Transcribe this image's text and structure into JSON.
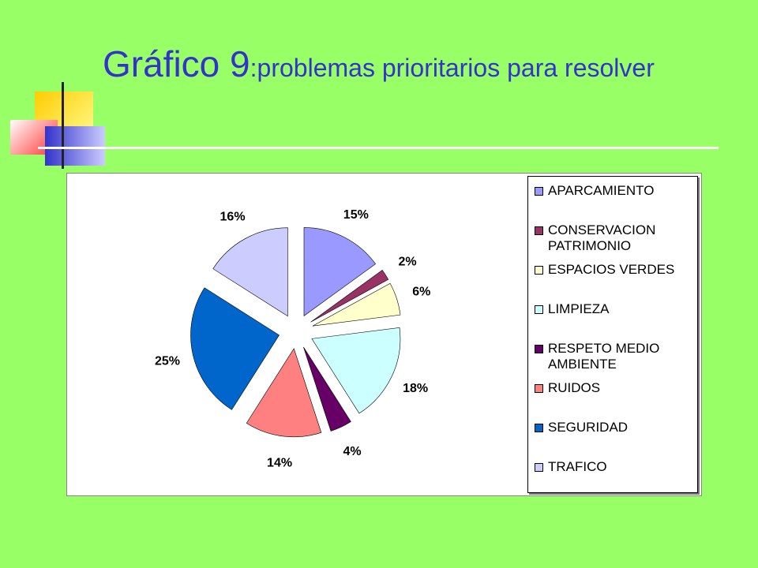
{
  "title": {
    "main": "Gráfico 9",
    "rest": ":problemas prioritarios para resolver"
  },
  "chart_data": {
    "type": "pie",
    "categories": [
      "APARCAMIENTO",
      "CONSERVACION PATRIMONIO",
      "ESPACIOS VERDES",
      "LIMPIEZA",
      "RESPETO MEDIO AMBIENTE",
      "RUIDOS",
      "SEGURIDAD",
      "TRAFICO"
    ],
    "values": [
      15,
      2,
      6,
      18,
      4,
      14,
      25,
      16
    ],
    "labels": [
      "15%",
      "2%",
      "6%",
      "18%",
      "4%",
      "14%",
      "25%",
      "16%"
    ],
    "colors": [
      "#9999ff",
      "#993366",
      "#ffffcc",
      "#ccffff",
      "#660066",
      "#ff8080",
      "#0066cc",
      "#ccccff"
    ],
    "exploded": true,
    "legend_position": "right",
    "title": "Gráfico 9:problemas prioritarios para resolver"
  }
}
